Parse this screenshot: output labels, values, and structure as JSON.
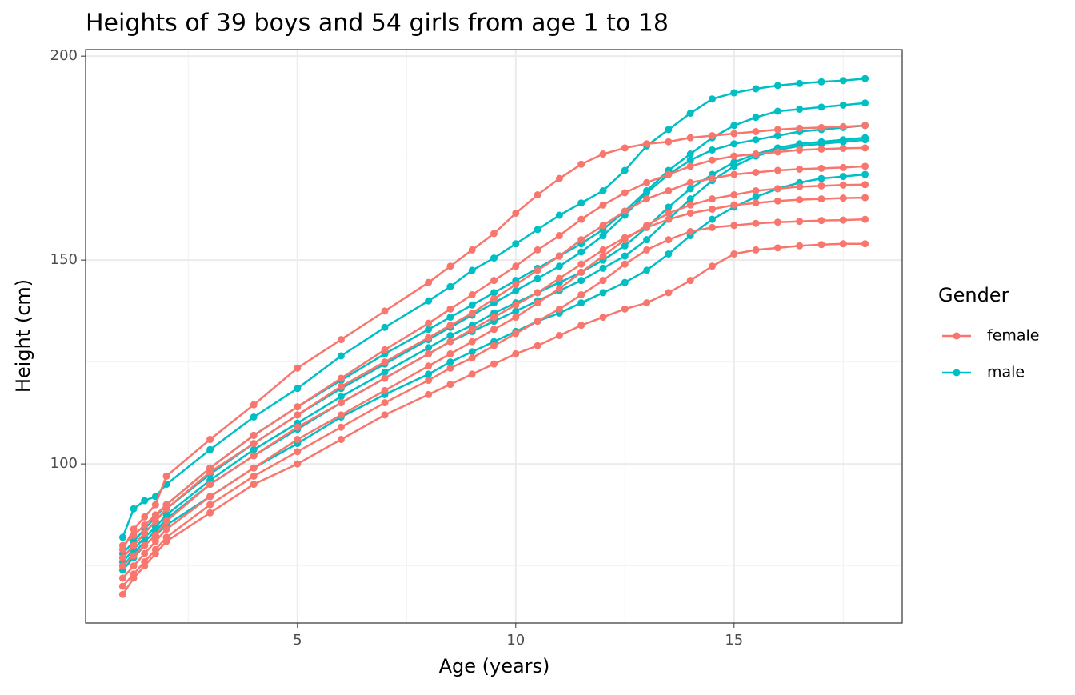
{
  "chart_data": {
    "type": "line",
    "title": "Heights of 39 boys and 54 girls from age 1 to 18",
    "x_label": "Age (years)",
    "y_label": "Height (cm)",
    "legend_title": "Gender",
    "x": [
      1,
      1.25,
      1.5,
      1.75,
      2,
      3,
      4,
      5,
      6,
      7,
      8,
      8.5,
      9,
      9.5,
      10,
      10.5,
      11,
      11.5,
      12,
      12.5,
      13,
      13.5,
      14,
      14.5,
      15,
      15.5,
      16,
      16.5,
      17,
      17.5,
      18
    ],
    "xlim": [
      0.15,
      18.85
    ],
    "xticks": [
      5,
      10,
      15
    ],
    "xminor": [
      2.5,
      7.5,
      12.5,
      17.5
    ],
    "ylim": [
      61,
      201.6
    ],
    "yticks": [
      100,
      150,
      200
    ],
    "yminor": [
      75,
      125,
      175
    ],
    "grid": true,
    "legend": "right",
    "series": [
      {
        "name": "male",
        "color": "#00BFC4",
        "lines": [
          [
            82,
            89,
            91,
            92,
            95,
            103.5,
            111.5,
            118.5,
            126.5,
            133.5,
            140,
            143.5,
            147.5,
            150.5,
            154,
            157.5,
            161,
            164,
            167,
            172,
            178,
            182,
            186,
            189.5,
            191,
            192,
            192.8,
            193.3,
            193.7,
            194,
            194.5
          ],
          [
            76,
            79,
            82,
            84.5,
            87.5,
            96,
            103.5,
            110,
            116.5,
            122.5,
            128.5,
            131.5,
            134,
            137,
            139.5,
            142,
            144.5,
            147,
            150,
            153.5,
            158,
            163,
            167.5,
            171,
            174,
            176,
            177.5,
            178.5,
            179,
            179.5,
            180
          ],
          [
            74,
            77,
            80,
            82.5,
            85,
            92,
            99,
            105,
            111.5,
            117,
            122,
            125,
            127.5,
            130,
            132.5,
            135,
            137,
            139.5,
            142,
            144.5,
            147.5,
            151.5,
            156,
            160,
            163,
            165.5,
            167.5,
            169,
            170,
            170.5,
            171
          ],
          [
            78,
            81,
            84,
            87,
            90,
            99,
            107,
            114,
            120.5,
            127,
            133,
            136,
            139,
            142,
            145,
            148,
            151,
            154,
            157.5,
            162,
            167,
            172,
            176,
            180,
            183,
            185,
            186.5,
            187,
            187.5,
            188,
            188.5
          ],
          [
            75,
            78,
            81,
            83.5,
            86.5,
            95,
            102,
            108.5,
            115,
            121,
            127,
            130,
            132.5,
            135,
            137.5,
            140,
            142.5,
            145,
            148,
            151,
            155,
            160,
            165,
            169.5,
            173,
            175.5,
            177,
            178,
            178.5,
            179,
            179.5
          ],
          [
            77,
            80,
            83,
            86,
            89,
            97.5,
            105,
            112,
            118.5,
            124.5,
            130.5,
            133.5,
            136.5,
            139.5,
            142.5,
            145.5,
            148.5,
            152,
            156,
            161,
            166.5,
            171,
            174.5,
            177,
            178.5,
            179.5,
            180.5,
            181.5,
            182,
            182.5,
            183
          ]
        ]
      },
      {
        "name": "female",
        "color": "#F8766D",
        "lines": [
          [
            79,
            84,
            87,
            90,
            97,
            106,
            114.5,
            123.5,
            130.5,
            137.5,
            144.5,
            148.5,
            152.5,
            156.5,
            161.5,
            166,
            170,
            173.5,
            176,
            177.5,
            178.5,
            179,
            180,
            180.5,
            181,
            181.5,
            182,
            182.3,
            182.5,
            182.7,
            183
          ],
          [
            75,
            77.5,
            80,
            82.5,
            86,
            95,
            102,
            109,
            115,
            121,
            127,
            130,
            133,
            136,
            139,
            142,
            145.5,
            149,
            152.5,
            155.5,
            158,
            160,
            161.5,
            162.5,
            163.5,
            164,
            164.5,
            164.8,
            165,
            165.2,
            165.3
          ],
          [
            68,
            72,
            75,
            78,
            81,
            88,
            95,
            100,
            106,
            112,
            117,
            119.5,
            122,
            124.5,
            127,
            129,
            131.5,
            134,
            136,
            138,
            139.5,
            142,
            145,
            148.5,
            151.5,
            152.5,
            153,
            153.5,
            153.8,
            154,
            154
          ],
          [
            72,
            75,
            78,
            81,
            84,
            92,
            99,
            106,
            112,
            118,
            124,
            127,
            130,
            133,
            136,
            139.5,
            143,
            147,
            151,
            155,
            158.5,
            161.5,
            163.5,
            165,
            166,
            167,
            167.5,
            168,
            168.2,
            168.4,
            168.5
          ],
          [
            77,
            80,
            83,
            86,
            89,
            98,
            105,
            112,
            119,
            125,
            131,
            134,
            137,
            140.5,
            144,
            147.5,
            151,
            155,
            158.5,
            162,
            165,
            167,
            169,
            170,
            171,
            171.5,
            172,
            172.3,
            172.5,
            172.7,
            173
          ],
          [
            70,
            73,
            76,
            79,
            82,
            90,
            97,
            103,
            109,
            115,
            120.5,
            123.5,
            126,
            129,
            132,
            135,
            138,
            141.5,
            145,
            149,
            152.5,
            155,
            157,
            158,
            158.5,
            159,
            159.3,
            159.5,
            159.7,
            159.8,
            160
          ],
          [
            80,
            82.5,
            85,
            87.5,
            90,
            99,
            107,
            114,
            121,
            128,
            134.5,
            138,
            141.5,
            145,
            148.5,
            152.5,
            156,
            160,
            163.5,
            166.5,
            169,
            171,
            173,
            174.5,
            175.5,
            176,
            176.5,
            177,
            177.2,
            177.4,
            177.5
          ]
        ]
      }
    ]
  }
}
